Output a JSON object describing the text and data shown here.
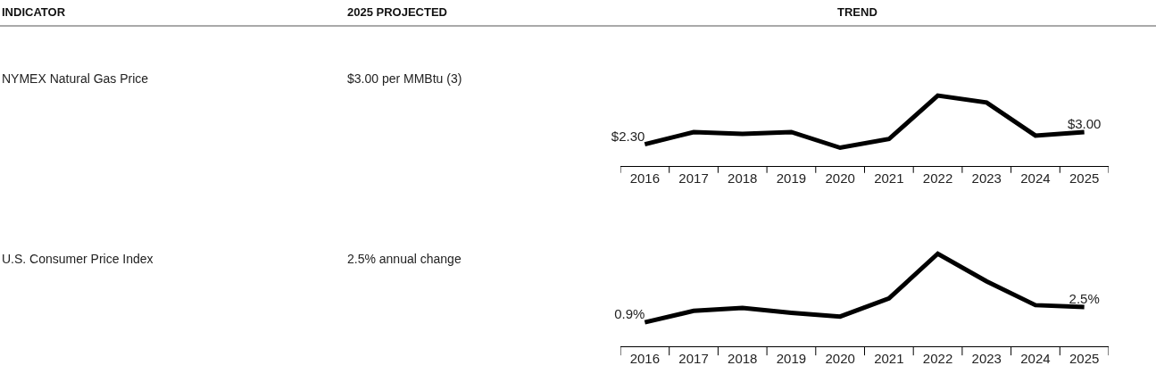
{
  "chart_data": [
    {
      "type": "other",
      "annotations": [
        "INDICATOR",
        "2025 PROJECTED",
        "TREND",
        "NYMEX Natural Gas Price",
        "$3.00 per MMBtu (3)",
        "U.S. Consumer Price Index",
        "2.5% annual change"
      ]
    },
    {
      "type": "line",
      "categories": [
        "2016",
        "2017",
        "2018",
        "2019",
        "2020",
        "2021",
        "2022",
        "2023",
        "2024",
        "2025"
      ],
      "values": [
        2.3,
        3.0,
        2.9,
        3.0,
        2.1,
        2.6,
        5.1,
        4.7,
        2.8,
        3.0
      ],
      "value_labels": [
        "$2.30",
        null,
        null,
        null,
        null,
        null,
        null,
        null,
        null,
        "$3.00"
      ],
      "color": "#000000",
      "tick_labels": "x",
      "line_style": "solid"
    },
    {
      "type": "line",
      "categories": [
        "2016",
        "2017",
        "2018",
        "2019",
        "2020",
        "2021",
        "2022",
        "2023",
        "2024",
        "2025"
      ],
      "values": [
        0.9,
        2.1,
        2.4,
        1.9,
        1.5,
        3.4,
        8.1,
        5.2,
        2.7,
        2.5
      ],
      "value_labels": [
        "0.9%",
        null,
        null,
        null,
        null,
        null,
        null,
        null,
        null,
        "2.5%"
      ],
      "color": "#000000",
      "tick_labels": "x",
      "line_style": "solid"
    }
  ]
}
